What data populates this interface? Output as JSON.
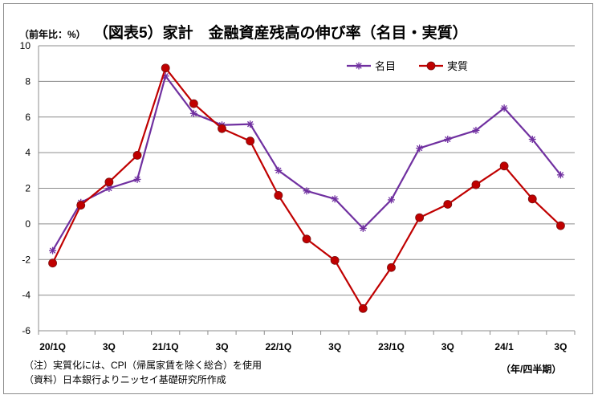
{
  "chart_data": {
    "type": "line",
    "title": "（図表5）家計　金融資産残高の伸び率（名目・実質）",
    "unit_label": "（前年比：%）",
    "period_unit": "（年/四半期）",
    "note": "（注）実質化には、CPI（帰属家賃を除く総合）を使用",
    "source": "（資料）日本銀行よりニッセイ基礎研究所作成",
    "x_tick_labels": [
      "20/1Q",
      "",
      "3Q",
      "",
      "21/1Q",
      "",
      "3Q",
      "",
      "22/1Q",
      "",
      "3Q",
      "",
      "23/1Q",
      "",
      "3Q",
      "",
      "24/1",
      "",
      "3Q"
    ],
    "y_ticks": [
      -6,
      -4,
      -2,
      0,
      2,
      4,
      6,
      8,
      10
    ],
    "ylim": [
      -6,
      10
    ],
    "grid": true,
    "legend_position": "top-right",
    "series": [
      {
        "name": "名目",
        "color": "#7030a0",
        "marker": "asterisk",
        "values": [
          -1.5,
          1.2,
          2.0,
          2.5,
          8.3,
          6.2,
          5.55,
          5.6,
          3.0,
          1.85,
          1.4,
          -0.25,
          1.35,
          4.25,
          4.75,
          5.25,
          6.5,
          4.75,
          2.75
        ]
      },
      {
        "name": "実質",
        "color": "#c00000",
        "marker": "circle",
        "values": [
          -2.2,
          1.05,
          2.35,
          3.85,
          8.75,
          6.75,
          5.35,
          4.65,
          1.6,
          -0.85,
          -2.05,
          -4.75,
          -2.45,
          0.35,
          1.1,
          2.2,
          3.25,
          1.4,
          -0.1
        ]
      }
    ]
  }
}
